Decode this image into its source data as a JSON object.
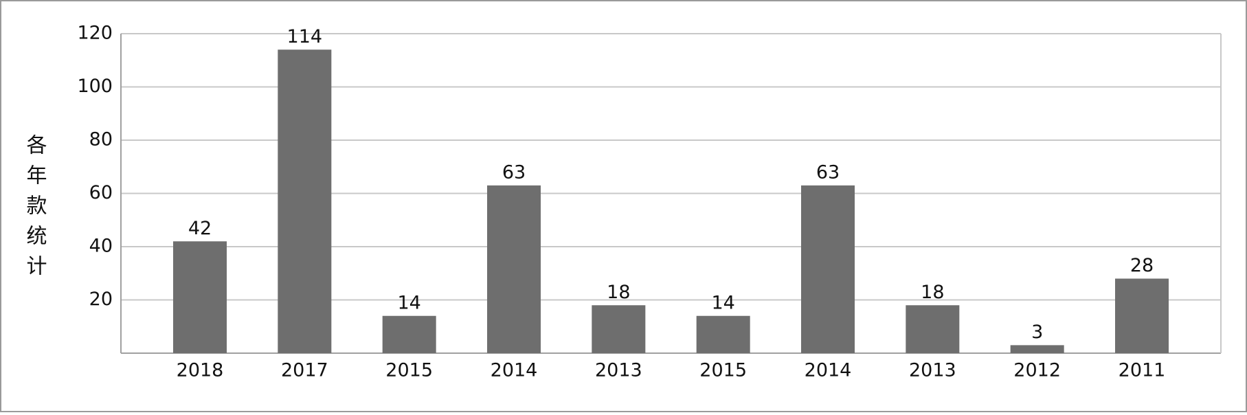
{
  "chart_data": {
    "type": "bar",
    "y_label": "各年款统计",
    "categories": [
      "2018",
      "2017",
      "2015",
      "2014",
      "2013",
      "2015",
      "2014",
      "2013",
      "2012",
      "2011"
    ],
    "values": [
      42,
      114,
      14,
      63,
      18,
      14,
      63,
      18,
      3,
      28
    ],
    "color": "#6e6e6e",
    "ylim": [
      0,
      120
    ],
    "yticks": [
      20,
      40,
      60,
      80,
      100,
      120
    ],
    "grid": true
  }
}
